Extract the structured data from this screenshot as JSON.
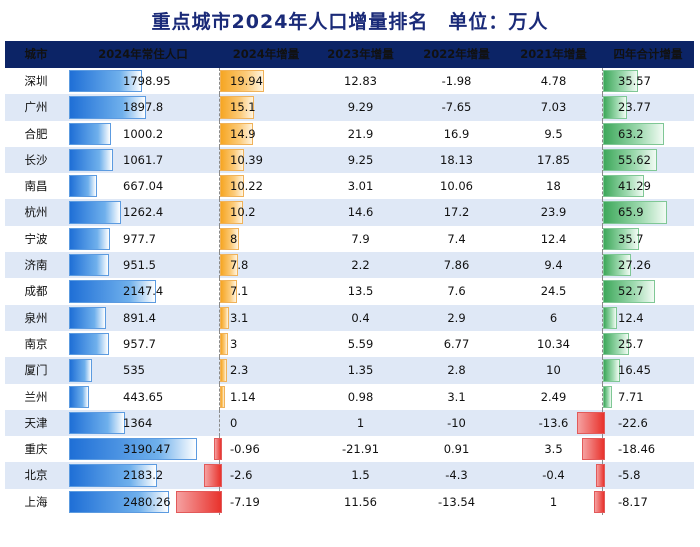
{
  "title": "重点城市2024年人口增量排名　单位：万人",
  "headers": [
    "城市",
    "2024年常住人口",
    "2024年增量",
    "2023年增量",
    "2022年增量",
    "2021年增量",
    "四年合计增量"
  ],
  "colors": {
    "header_bg": "#0c2466",
    "title": "#1a2a78",
    "population": "#1f6fd6",
    "increase": "#f6a623",
    "decrease": "#e8322c",
    "total": "#3ea85b"
  },
  "rows": [
    {
      "city": "深圳",
      "pop": "1798.95",
      "y2024": "19.94",
      "y2023": "12.83",
      "y2022": "-1.98",
      "y2021": "4.78",
      "total": "35.57"
    },
    {
      "city": "广州",
      "pop": "1897.8",
      "y2024": "15.1",
      "y2023": "9.29",
      "y2022": "-7.65",
      "y2021": "7.03",
      "total": "23.77"
    },
    {
      "city": "合肥",
      "pop": "1000.2",
      "y2024": "14.9",
      "y2023": "21.9",
      "y2022": "16.9",
      "y2021": "9.5",
      "total": "63.2"
    },
    {
      "city": "长沙",
      "pop": "1061.7",
      "y2024": "10.39",
      "y2023": "9.25",
      "y2022": "18.13",
      "y2021": "17.85",
      "total": "55.62"
    },
    {
      "city": "南昌",
      "pop": "667.04",
      "y2024": "10.22",
      "y2023": "3.01",
      "y2022": "10.06",
      "y2021": "18",
      "total": "41.29"
    },
    {
      "city": "杭州",
      "pop": "1262.4",
      "y2024": "10.2",
      "y2023": "14.6",
      "y2022": "17.2",
      "y2021": "23.9",
      "total": "65.9"
    },
    {
      "city": "宁波",
      "pop": "977.7",
      "y2024": "8",
      "y2023": "7.9",
      "y2022": "7.4",
      "y2021": "12.4",
      "total": "35.7"
    },
    {
      "city": "济南",
      "pop": "951.5",
      "y2024": "7.8",
      "y2023": "2.2",
      "y2022": "7.86",
      "y2021": "9.4",
      "total": "27.26"
    },
    {
      "city": "成都",
      "pop": "2147.4",
      "y2024": "7.1",
      "y2023": "13.5",
      "y2022": "7.6",
      "y2021": "24.5",
      "total": "52.7"
    },
    {
      "city": "泉州",
      "pop": "891.4",
      "y2024": "3.1",
      "y2023": "0.4",
      "y2022": "2.9",
      "y2021": "6",
      "total": "12.4"
    },
    {
      "city": "南京",
      "pop": "957.7",
      "y2024": "3",
      "y2023": "5.59",
      "y2022": "6.77",
      "y2021": "10.34",
      "total": "25.7"
    },
    {
      "city": "厦门",
      "pop": "535",
      "y2024": "2.3",
      "y2023": "1.35",
      "y2022": "2.8",
      "y2021": "10",
      "total": "16.45"
    },
    {
      "city": "兰州",
      "pop": "443.65",
      "y2024": "1.14",
      "y2023": "0.98",
      "y2022": "3.1",
      "y2021": "2.49",
      "total": "7.71"
    },
    {
      "city": "天津",
      "pop": "1364",
      "y2024": "0",
      "y2023": "1",
      "y2022": "-10",
      "y2021": "-13.6",
      "total": "-22.6"
    },
    {
      "city": "重庆",
      "pop": "3190.47",
      "y2024": "-0.96",
      "y2023": "-21.91",
      "y2022": "0.91",
      "y2021": "3.5",
      "total": "-18.46"
    },
    {
      "city": "北京",
      "pop": "2183.2",
      "y2024": "-2.6",
      "y2023": "1.5",
      "y2022": "-4.3",
      "y2021": "-0.4",
      "total": "-5.8"
    },
    {
      "city": "上海",
      "pop": "2480.26",
      "y2024": "-7.19",
      "y2023": "11.56",
      "y2022": "-13.54",
      "y2021": "1",
      "total": "-8.17"
    }
  ]
}
